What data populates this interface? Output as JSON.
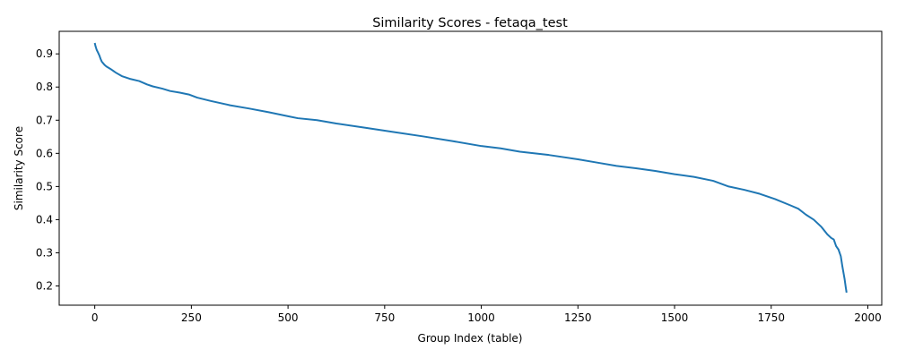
{
  "chart_data": {
    "type": "line",
    "title": "Similarity Scores - fetaqa_test",
    "xlabel": "Group Index (table)",
    "ylabel": "Similarity Score",
    "xlim": [
      -92,
      2036
    ],
    "ylim": [
      0.142,
      0.968
    ],
    "grid": false,
    "x_ticks": [
      0,
      250,
      500,
      750,
      1000,
      1250,
      1500,
      1750,
      2000
    ],
    "y_ticks": [
      0.2,
      0.3,
      0.4,
      0.5,
      0.6,
      0.7,
      0.8,
      0.9
    ],
    "x_tick_labels": [
      "0",
      "250",
      "500",
      "750",
      "1000",
      "1250",
      "1500",
      "1750",
      "2000"
    ],
    "y_tick_labels": [
      "0.2",
      "0.3",
      "0.4",
      "0.5",
      "0.6",
      "0.7",
      "0.8",
      "0.9"
    ],
    "colors": {
      "line": "#1f77b4"
    },
    "series": [
      {
        "x": [
          0,
          2,
          5,
          8,
          12,
          15,
          18,
          20,
          23,
          26,
          30,
          40,
          55,
          70,
          90,
          115,
          135,
          150,
          175,
          195,
          220,
          245,
          265,
          300,
          350,
          400,
          450,
          500,
          525,
          575,
          625,
          700,
          775,
          850,
          925,
          1000,
          1050,
          1100,
          1175,
          1250,
          1300,
          1350,
          1400,
          1450,
          1500,
          1550,
          1600,
          1640,
          1680,
          1720,
          1760,
          1800,
          1820,
          1840,
          1860,
          1880,
          1895,
          1905,
          1912,
          1918,
          1924,
          1930,
          1934,
          1937,
          1940,
          1943,
          1945
        ],
        "y": [
          0.933,
          0.923,
          0.912,
          0.905,
          0.895,
          0.885,
          0.877,
          0.874,
          0.87,
          0.866,
          0.862,
          0.855,
          0.843,
          0.833,
          0.825,
          0.818,
          0.808,
          0.802,
          0.795,
          0.788,
          0.783,
          0.777,
          0.768,
          0.758,
          0.745,
          0.735,
          0.724,
          0.712,
          0.706,
          0.7,
          0.69,
          0.677,
          0.664,
          0.651,
          0.637,
          0.622,
          0.615,
          0.605,
          0.595,
          0.582,
          0.572,
          0.562,
          0.555,
          0.547,
          0.537,
          0.529,
          0.517,
          0.5,
          0.49,
          0.478,
          0.462,
          0.443,
          0.433,
          0.415,
          0.4,
          0.378,
          0.356,
          0.345,
          0.34,
          0.32,
          0.31,
          0.29,
          0.26,
          0.24,
          0.22,
          0.195,
          0.18
        ]
      }
    ]
  }
}
